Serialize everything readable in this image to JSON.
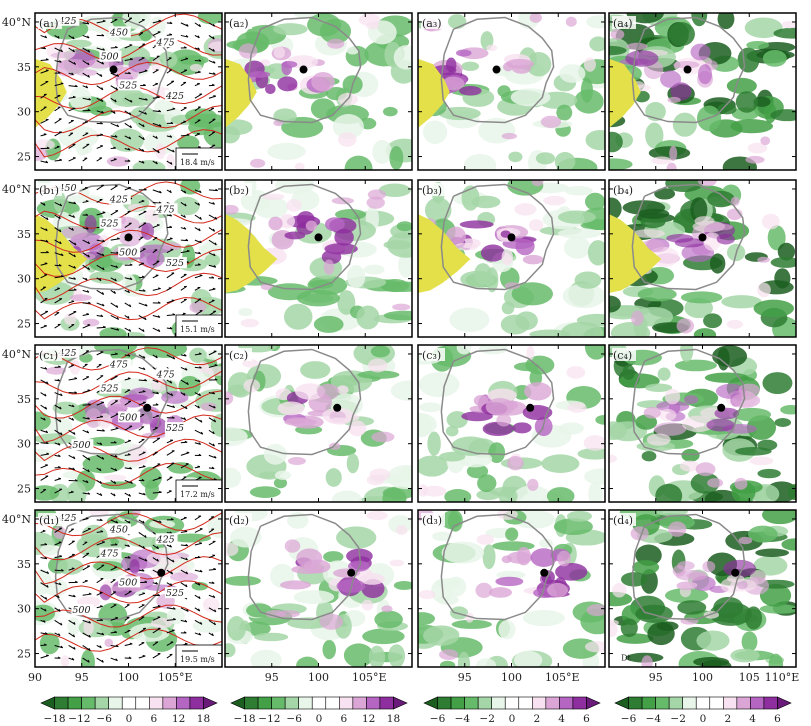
{
  "chart_data": {
    "type": "heatmap",
    "title": "",
    "layout": "4x4 grid of shaded contour maps with shared axes",
    "x_axis": {
      "range": [
        90,
        110
      ],
      "ticks": [
        90,
        95,
        100,
        105,
        110
      ],
      "tick_labels": [
        "90",
        "95",
        "100",
        "105°E",
        "110°E"
      ],
      "tick_labels_plain": [
        "90",
        "95",
        "100",
        "105",
        "110"
      ],
      "unit": "°E",
      "label_x105": "105°E",
      "label_x110": "110°E"
    },
    "y_axis": {
      "range": [
        23.5,
        41
      ],
      "ticks": [
        25,
        30,
        35,
        40
      ],
      "tick_labels": [
        "25",
        "30",
        "35",
        "40°N"
      ]
    },
    "rows": [
      {
        "id": "a",
        "panel_labels": [
          "(a₁)",
          "(a₂)",
          "(a₃)",
          "(a₄)"
        ],
        "wind_reference": "18.4 m/s",
        "contour_labels": [
          "425",
          "450",
          "475",
          "500",
          "525",
          "425"
        ],
        "center_dot": {
          "lon": 98.4,
          "lat": 34.7
        }
      },
      {
        "id": "b",
        "panel_labels": [
          "(b₁)",
          "(b₂)",
          "(b₃)",
          "(b₄)"
        ],
        "wind_reference": "15.1 m/s",
        "contour_labels": [
          "450",
          "425",
          "475",
          "525",
          "500",
          "525"
        ],
        "center_dot": {
          "lon": 100.0,
          "lat": 34.6
        }
      },
      {
        "id": "c",
        "panel_labels": [
          "(c₁)",
          "(c₂)",
          "(c₃)",
          "(c₄)"
        ],
        "wind_reference": "17.2 m/s",
        "contour_labels": [
          "425",
          "475",
          "475",
          "525",
          "500",
          "525",
          "500"
        ],
        "center_dot": {
          "lon": 102.0,
          "lat": 34.0
        }
      },
      {
        "id": "d",
        "panel_labels": [
          "(d₁)",
          "(d₂)",
          "(d₃)",
          "(d₄)"
        ],
        "wind_reference": "19.5 m/s",
        "contour_labels": [
          "425",
          "450",
          "425",
          "475",
          "500",
          "525",
          "500"
        ],
        "center_dot": {
          "lon": 103.5,
          "lat": 34.0
        }
      }
    ],
    "terrain_masks": [
      {
        "row": "a",
        "description": "yellow mask west edge",
        "lat_range": [
          28,
          36
        ]
      },
      {
        "row": "b",
        "description": "yellow mask west edge",
        "lat_range": [
          28,
          36
        ]
      }
    ],
    "colorbars": [
      {
        "columns": [
          1
        ],
        "ticks": [
          "−18",
          "−12",
          "−6",
          "0",
          "6",
          "12",
          "18"
        ],
        "colors": [
          "#1b5e20",
          "#2e7d32",
          "#43a047",
          "#66bb6a",
          "#a5d6a7",
          "#e8f5e9",
          "#ffffff",
          "#ffffff",
          "#f8e1f0",
          "#dba6d6",
          "#b565c2",
          "#8e2e9f",
          "#6a1b7a"
        ]
      },
      {
        "columns": [
          2
        ],
        "ticks": [
          "−18",
          "−12",
          "−6",
          "0",
          "6",
          "12",
          "18"
        ],
        "colors": [
          "#1b5e20",
          "#2e7d32",
          "#43a047",
          "#66bb6a",
          "#a5d6a7",
          "#e8f5e9",
          "#ffffff",
          "#ffffff",
          "#f8e1f0",
          "#dba6d6",
          "#b565c2",
          "#8e2e9f",
          "#6a1b7a"
        ]
      },
      {
        "columns": [
          3
        ],
        "ticks": [
          "−6",
          "−4",
          "−2",
          "0",
          "2",
          "4",
          "6"
        ],
        "colors": [
          "#1b5e20",
          "#2e7d32",
          "#43a047",
          "#66bb6a",
          "#a5d6a7",
          "#e8f5e9",
          "#ffffff",
          "#ffffff",
          "#f8e1f0",
          "#dba6d6",
          "#b565c2",
          "#8e2e9f",
          "#6a1b7a"
        ]
      },
      {
        "columns": [
          4
        ],
        "ticks": [
          "−6",
          "−4",
          "−2",
          "0",
          "2",
          "4",
          "6"
        ],
        "colors": [
          "#1b5e20",
          "#2e7d32",
          "#43a047",
          "#66bb6a",
          "#a5d6a7",
          "#e8f5e9",
          "#ffffff",
          "#ffffff",
          "#f8e1f0",
          "#dba6d6",
          "#b565c2",
          "#8e2e9f",
          "#6a1b7a"
        ]
      }
    ],
    "annotation_d4": "Dt"
  },
  "colors": {
    "mask": "#e3e04a",
    "contour": "#d22a1c",
    "outline": "#8a8a8a",
    "dot": "#000000",
    "frame": "#000000"
  }
}
